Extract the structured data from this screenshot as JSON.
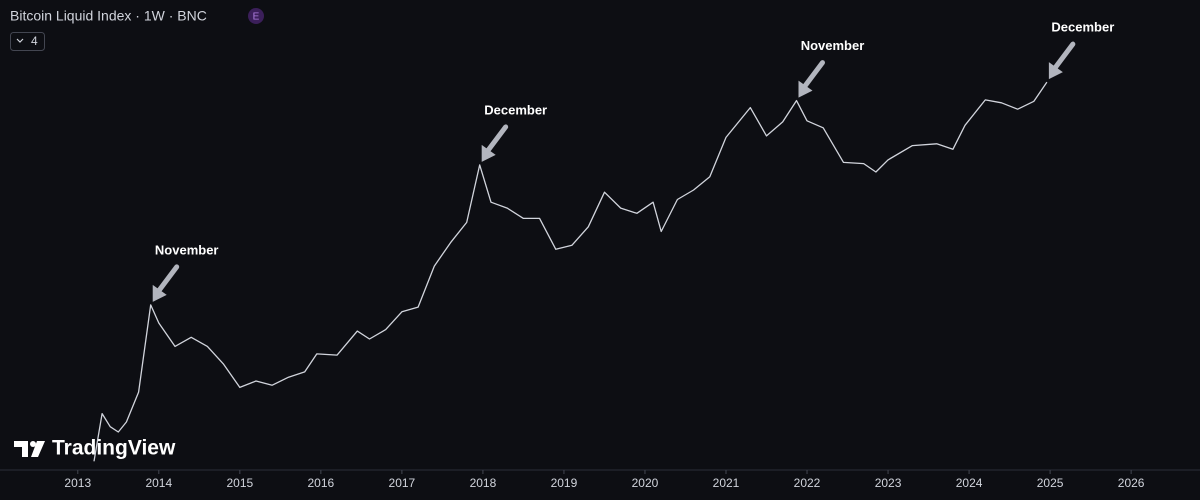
{
  "chart_data": {
    "type": "line",
    "title": "Bitcoin Liquid Index · 1W · BNC",
    "badge": "E",
    "indicator_count": 4,
    "logo": "TradingView",
    "log_scale": true,
    "color": "#d1d4dc",
    "xlim": [
      2012.04,
      2026.85
    ],
    "xticks": [
      2013,
      2014,
      2015,
      2016,
      2017,
      2018,
      2019,
      2020,
      2021,
      2022,
      2023,
      2024,
      2025,
      2026
    ],
    "ylim": [
      42,
      518000
    ],
    "series": [
      {
        "name": "Bitcoin Liquid Index",
        "color": "#d1d4dc",
        "x": [
          2013.2,
          2013.3,
          2013.4,
          2013.5,
          2013.6,
          2013.75,
          2013.9,
          2014.0,
          2014.2,
          2014.4,
          2014.6,
          2014.8,
          2015.0,
          2015.2,
          2015.4,
          2015.6,
          2015.8,
          2015.95,
          2016.2,
          2016.45,
          2016.6,
          2016.8,
          2017.0,
          2017.2,
          2017.4,
          2017.6,
          2017.8,
          2017.96,
          2018.1,
          2018.3,
          2018.5,
          2018.7,
          2018.9,
          2019.1,
          2019.3,
          2019.5,
          2019.7,
          2019.9,
          2020.1,
          2020.2,
          2020.4,
          2020.6,
          2020.8,
          2021.0,
          2021.3,
          2021.5,
          2021.7,
          2021.87,
          2022.0,
          2022.2,
          2022.45,
          2022.7,
          2022.85,
          2023.0,
          2023.3,
          2023.6,
          2023.8,
          2023.95,
          2024.2,
          2024.4,
          2024.6,
          2024.8,
          2024.96
        ],
        "values": [
          50,
          130,
          100,
          90,
          110,
          200,
          1150,
          800,
          500,
          600,
          500,
          350,
          220,
          250,
          230,
          270,
          300,
          430,
          420,
          680,
          580,
          700,
          1000,
          1100,
          2500,
          4000,
          6000,
          19000,
          9000,
          8000,
          6500,
          6500,
          3500,
          3800,
          5500,
          11000,
          8000,
          7200,
          9000,
          5000,
          9500,
          11500,
          15000,
          33000,
          60000,
          34000,
          45000,
          69000,
          46000,
          40000,
          20000,
          19500,
          16500,
          21000,
          28000,
          29000,
          26000,
          42000,
          70000,
          66000,
          58000,
          68000,
          100000
        ]
      }
    ],
    "annotations": [
      {
        "text": "November",
        "x": 2013.9
      },
      {
        "text": "December",
        "x": 2017.96
      },
      {
        "text": "November",
        "x": 2021.87
      },
      {
        "text": "December",
        "x": 2024.96
      }
    ]
  }
}
